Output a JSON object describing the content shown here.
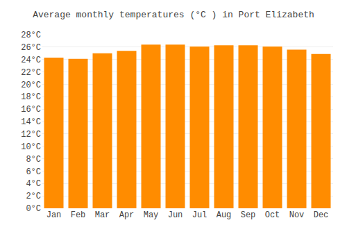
{
  "chart_data": {
    "type": "bar",
    "title": "Average monthly temperatures (°C ) in Port Elizabeth",
    "categories": [
      "Jan",
      "Feb",
      "Mar",
      "Apr",
      "May",
      "Jun",
      "Jul",
      "Aug",
      "Sep",
      "Oct",
      "Nov",
      "Dec"
    ],
    "values": [
      24.3,
      24.1,
      25.0,
      25.4,
      26.4,
      26.4,
      26.1,
      26.3,
      26.3,
      26.1,
      25.6,
      24.9
    ],
    "color": "#ff8c00",
    "ylim": [
      0,
      28
    ],
    "yticks": [
      {
        "value": 0,
        "label": "0°C"
      },
      {
        "value": 2,
        "label": "2°C"
      },
      {
        "value": 4,
        "label": "4°C"
      },
      {
        "value": 6,
        "label": "6°C"
      },
      {
        "value": 8,
        "label": "8°C"
      },
      {
        "value": 10,
        "label": "10°C"
      },
      {
        "value": 12,
        "label": "12°C"
      },
      {
        "value": 14,
        "label": "14°C"
      },
      {
        "value": 16,
        "label": "16°C"
      },
      {
        "value": 18,
        "label": "18°C"
      },
      {
        "value": 20,
        "label": "20°C"
      },
      {
        "value": 22,
        "label": "22°C"
      },
      {
        "value": 24,
        "label": "24°C"
      },
      {
        "value": 26,
        "label": "26°C"
      },
      {
        "value": 28,
        "label": "28°C"
      }
    ],
    "grid": true
  }
}
